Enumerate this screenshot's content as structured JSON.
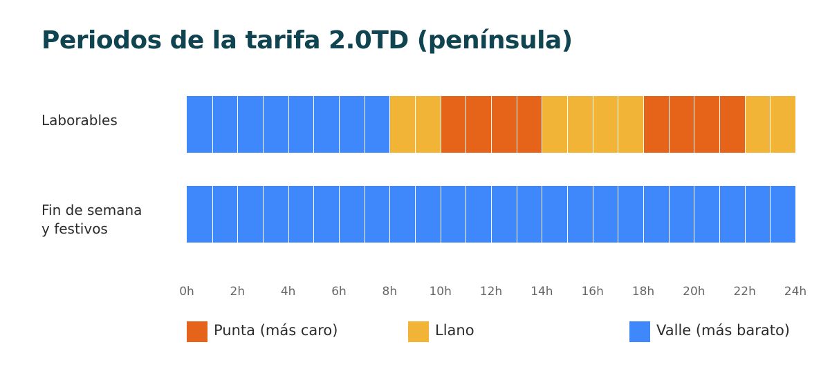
{
  "chart_data": {
    "type": "heatmap",
    "title": "Periodos de la tarifa 2.0TD (península)",
    "periods": {
      "punta": {
        "label": "Punta (más caro)",
        "color": "#e5641a"
      },
      "llano": {
        "label": "Llano",
        "color": "#f2b437"
      },
      "valle": {
        "label": "Valle (más barato)",
        "color": "#3e88fc"
      }
    },
    "rows": [
      {
        "label": "Laborables",
        "hours": [
          "valle",
          "valle",
          "valle",
          "valle",
          "valle",
          "valle",
          "valle",
          "valle",
          "llano",
          "llano",
          "punta",
          "punta",
          "punta",
          "punta",
          "llano",
          "llano",
          "llano",
          "llano",
          "punta",
          "punta",
          "punta",
          "punta",
          "llano",
          "llano"
        ]
      },
      {
        "label": "Fin de semana\ny festivos",
        "hours": [
          "valle",
          "valle",
          "valle",
          "valle",
          "valle",
          "valle",
          "valle",
          "valle",
          "valle",
          "valle",
          "valle",
          "valle",
          "valle",
          "valle",
          "valle",
          "valle",
          "valle",
          "valle",
          "valle",
          "valle",
          "valle",
          "valle",
          "valle",
          "valle"
        ]
      }
    ],
    "x_ticks": [
      "0h",
      "2h",
      "4h",
      "6h",
      "8h",
      "10h",
      "12h",
      "14h",
      "16h",
      "18h",
      "20h",
      "22h",
      "24h"
    ],
    "x_range": [
      0,
      24
    ]
  }
}
